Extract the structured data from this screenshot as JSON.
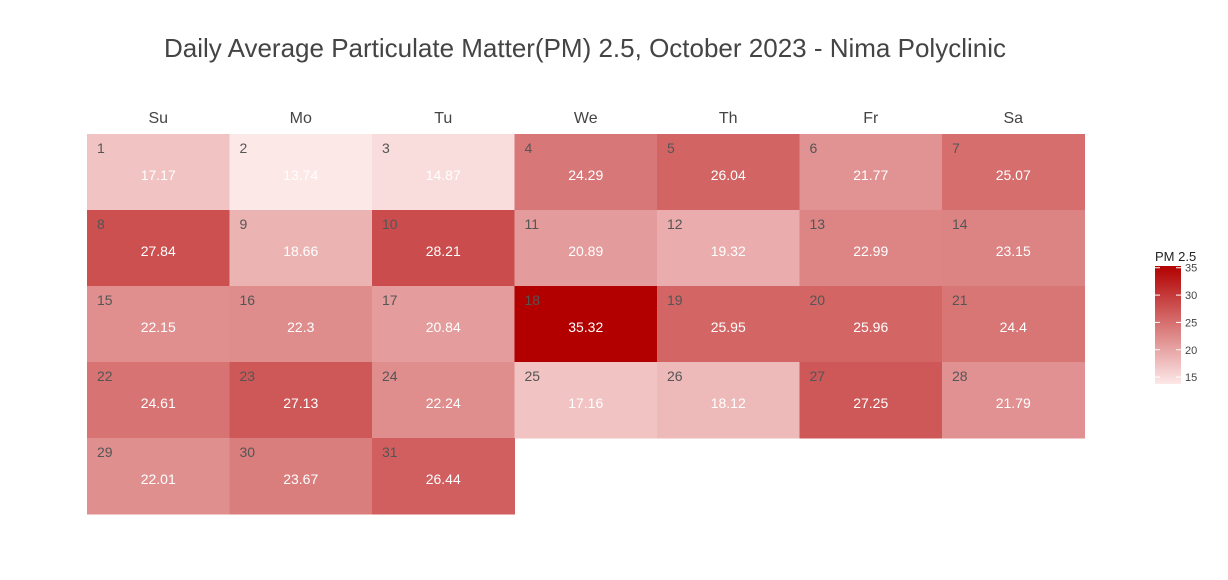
{
  "chart_data": {
    "type": "heatmap",
    "title": "Daily Average Particulate Matter(PM) 2.5, October 2023 - Nima Polyclinic",
    "weekdays": [
      "Su",
      "Mo",
      "Tu",
      "We",
      "Th",
      "Fr",
      "Sa"
    ],
    "first_weekday_index": 0,
    "days": [
      "1",
      "2",
      "3",
      "4",
      "5",
      "6",
      "7",
      "8",
      "9",
      "10",
      "11",
      "12",
      "13",
      "14",
      "15",
      "16",
      "17",
      "18",
      "19",
      "20",
      "21",
      "22",
      "23",
      "24",
      "25",
      "26",
      "27",
      "28",
      "29",
      "30",
      "31"
    ],
    "values": [
      17.17,
      13.74,
      14.87,
      24.29,
      26.04,
      21.77,
      25.07,
      27.84,
      18.66,
      28.21,
      20.89,
      19.32,
      22.99,
      23.15,
      22.15,
      22.3,
      20.84,
      35.32,
      25.95,
      25.96,
      24.4,
      24.61,
      27.13,
      22.24,
      17.16,
      18.12,
      27.25,
      21.79,
      22.01,
      23.67,
      26.44
    ],
    "value_labels": [
      "17.17",
      "13.74",
      "14.87",
      "24.29",
      "26.04",
      "21.77",
      "25.07",
      "27.84",
      "18.66",
      "28.21",
      "20.89",
      "19.32",
      "22.99",
      "23.15",
      "22.15",
      "22.3",
      "20.84",
      "35.32",
      "25.95",
      "25.96",
      "24.4",
      "24.61",
      "27.13",
      "22.24",
      "17.16",
      "18.12",
      "27.25",
      "21.79",
      "22.01",
      "23.67",
      "26.44"
    ],
    "legend": {
      "title": "PM 2.5",
      "ticks": [
        15,
        20,
        25,
        30,
        35
      ],
      "tick_labels": [
        "15",
        "20",
        "25",
        "30",
        "35"
      ],
      "range": [
        13.74,
        35.32
      ],
      "placement": "right"
    },
    "colors": {
      "low": "#fde8e8",
      "high": "#b20000"
    }
  }
}
